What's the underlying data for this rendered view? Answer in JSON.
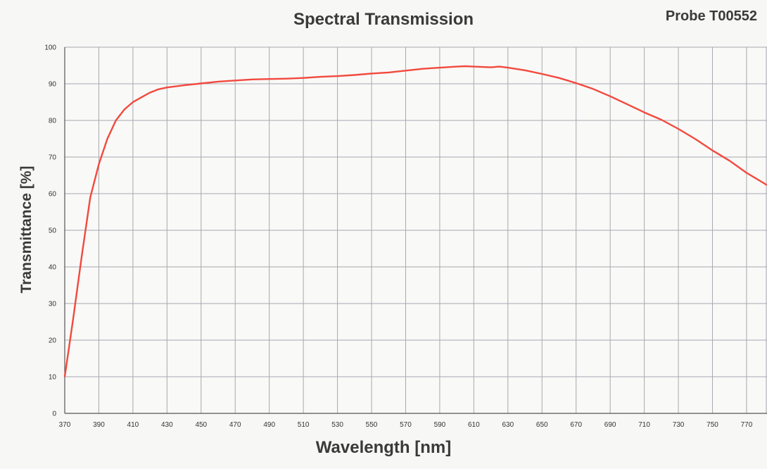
{
  "chart_data": {
    "type": "line",
    "title": "Spectral Transmission",
    "subtitle": "Probe T00552",
    "xlabel": "Wavelength [nm]",
    "ylabel": "Transmittance [%]",
    "xlim": [
      370,
      782
    ],
    "ylim": [
      0,
      100
    ],
    "xticks": [
      370,
      390,
      410,
      430,
      450,
      470,
      490,
      510,
      530,
      550,
      570,
      590,
      610,
      630,
      650,
      670,
      690,
      710,
      730,
      750,
      770
    ],
    "yticks": [
      0,
      10,
      20,
      30,
      40,
      50,
      60,
      70,
      80,
      90,
      100
    ],
    "grid": true,
    "series": [
      {
        "color": "#f2493e",
        "x": [
          370,
          375,
          380,
          385,
          390,
          395,
          400,
          405,
          410,
          415,
          420,
          425,
          430,
          440,
          450,
          460,
          470,
          480,
          490,
          500,
          510,
          520,
          530,
          540,
          550,
          560,
          570,
          580,
          590,
          600,
          605,
          610,
          620,
          625,
          630,
          640,
          650,
          660,
          670,
          680,
          690,
          700,
          710,
          720,
          730,
          740,
          750,
          760,
          770,
          780,
          782
        ],
        "y": [
          10,
          26,
          43,
          59,
          68,
          75,
          80,
          83,
          85,
          86.3,
          87.6,
          88.5,
          89,
          89.6,
          90.1,
          90.6,
          90.9,
          91.2,
          91.3,
          91.4,
          91.6,
          91.9,
          92.1,
          92.4,
          92.8,
          93.1,
          93.6,
          94.1,
          94.4,
          94.7,
          94.8,
          94.7,
          94.5,
          94.7,
          94.4,
          93.7,
          92.7,
          91.6,
          90.2,
          88.6,
          86.6,
          84.4,
          82.2,
          80.2,
          77.7,
          74.9,
          71.8,
          69.0,
          65.7,
          62.9,
          62.3
        ]
      }
    ]
  }
}
